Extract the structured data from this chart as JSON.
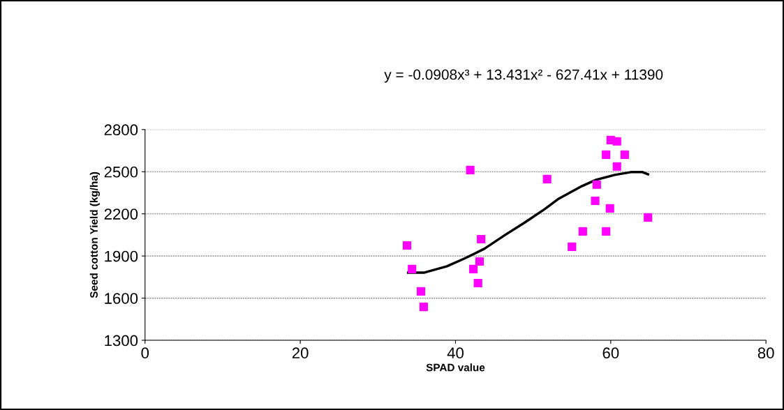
{
  "chart_data": {
    "type": "scatter",
    "xlabel": "SPAD value",
    "ylabel": "Seed cotton Yield (kg/ha)",
    "xlim": [
      0,
      80
    ],
    "xticks": [
      0,
      20,
      40,
      60,
      80
    ],
    "ylim": [
      1300,
      2800
    ],
    "yticks": [
      1300,
      1600,
      1900,
      2200,
      2500,
      2800
    ],
    "grid": "y",
    "marker": "square",
    "legend": false,
    "annotations": [
      "y = -0.0908x³ + 13.431x² - 627.41x + 11390"
    ],
    "series": [
      {
        "color": "#ff00ff",
        "x": [
          33.75,
          34.4,
          35.55,
          35.9,
          41.9,
          42.3,
          42.9,
          43.1,
          43.3,
          51.8,
          55.0,
          56.4,
          59.4,
          58.0,
          58.2,
          59.9,
          64.8,
          60.8,
          59.4,
          61.8,
          60.0,
          60.8
        ],
        "values": [
          1975,
          1807,
          1648,
          1538,
          2512,
          1807,
          1707,
          1861,
          2020,
          2447,
          1966,
          2075,
          2075,
          2293,
          2408,
          2239,
          2174,
          2537,
          2621,
          2621,
          2725,
          2716
        ]
      },
      {
        "type": "line",
        "color": "#000000",
        "marker": "none",
        "line_style": "solid",
        "x": [
          33.9,
          36.0,
          38.9,
          41.3,
          43.7,
          46.4,
          48.8,
          51.5,
          53.3,
          56.3,
          58.1,
          60.5,
          62.6,
          64.1,
          64.8
        ],
        "values": [
          1782,
          1782,
          1827,
          1886,
          1951,
          2050,
          2134,
          2234,
          2308,
          2398,
          2442,
          2477,
          2497,
          2497,
          2482
        ]
      }
    ]
  }
}
